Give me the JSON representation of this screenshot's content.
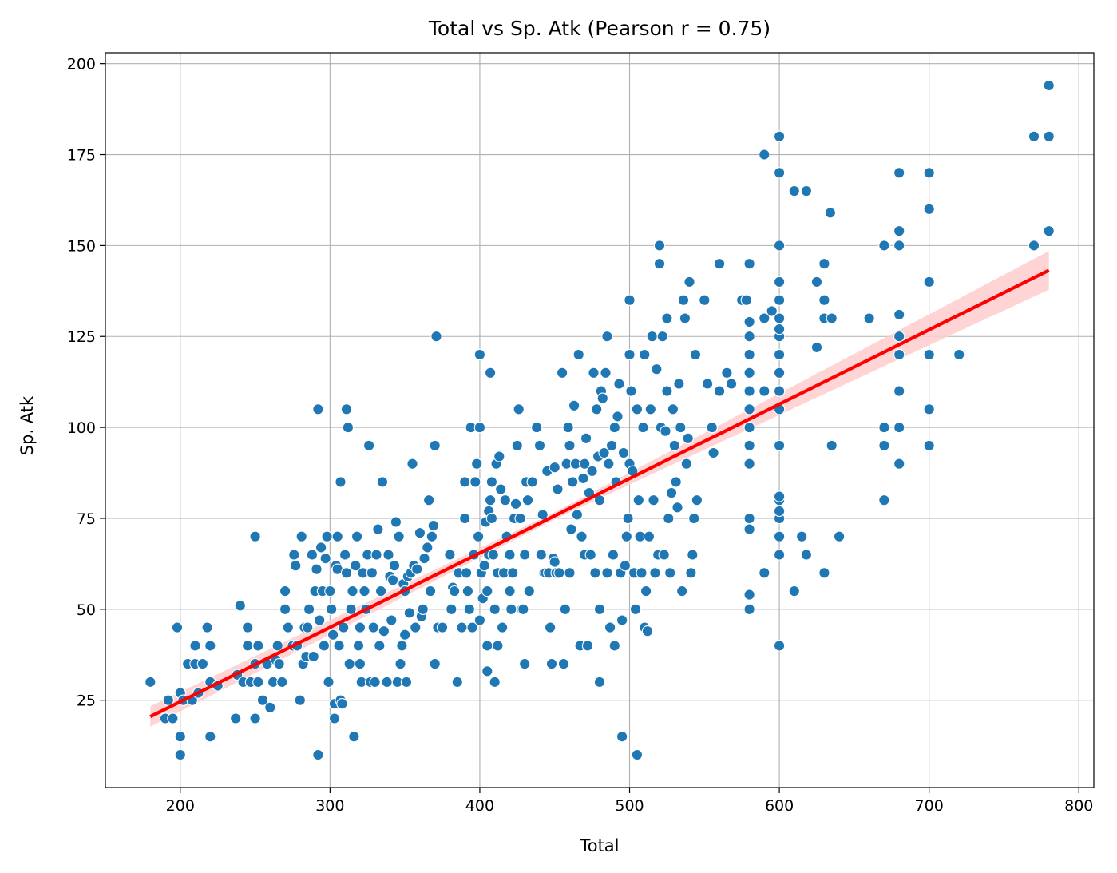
{
  "chart_data": {
    "type": "scatter",
    "title": "Total vs Sp. Atk (Pearson r = 0.75)",
    "xlabel": "Total",
    "ylabel": "Sp. Atk",
    "xlim": [
      150,
      810
    ],
    "ylim": [
      1,
      203
    ],
    "x_ticks": [
      200,
      300,
      400,
      500,
      600,
      700,
      800
    ],
    "y_ticks": [
      25,
      50,
      75,
      100,
      125,
      150,
      175,
      200
    ],
    "grid": true,
    "colors": {
      "points": "#1f77b4",
      "regression_line": "#ff0000",
      "confidence_band": "#ffcccc"
    },
    "regression": {
      "x_range": [
        180,
        780
      ],
      "y_start": 20.5,
      "y_end": 143.2,
      "band_halfwidth_start": 2.8,
      "band_halfwidth_mid": 1.0,
      "band_halfwidth_end": 5.3
    },
    "points": [
      [
        180,
        30
      ],
      [
        190,
        20
      ],
      [
        192,
        25
      ],
      [
        195,
        20
      ],
      [
        198,
        45
      ],
      [
        200,
        10
      ],
      [
        200,
        15
      ],
      [
        200,
        27
      ],
      [
        202,
        25
      ],
      [
        205,
        35
      ],
      [
        208,
        25
      ],
      [
        210,
        35
      ],
      [
        210,
        40
      ],
      [
        212,
        27
      ],
      [
        215,
        35
      ],
      [
        218,
        45
      ],
      [
        220,
        15
      ],
      [
        220,
        30
      ],
      [
        220,
        40
      ],
      [
        225,
        29
      ],
      [
        237,
        20
      ],
      [
        238,
        32
      ],
      [
        240,
        51
      ],
      [
        242,
        30
      ],
      [
        245,
        45
      ],
      [
        245,
        40
      ],
      [
        247,
        30
      ],
      [
        250,
        20
      ],
      [
        250,
        35
      ],
      [
        250,
        70
      ],
      [
        252,
        40
      ],
      [
        252,
        30
      ],
      [
        255,
        25
      ],
      [
        258,
        35
      ],
      [
        260,
        23
      ],
      [
        262,
        30
      ],
      [
        264,
        36
      ],
      [
        265,
        40
      ],
      [
        266,
        35
      ],
      [
        268,
        30
      ],
      [
        270,
        55
      ],
      [
        270,
        50
      ],
      [
        272,
        45
      ],
      [
        275,
        40
      ],
      [
        276,
        65
      ],
      [
        277,
        62
      ],
      [
        278,
        40
      ],
      [
        280,
        25
      ],
      [
        281,
        70
      ],
      [
        282,
        35
      ],
      [
        283,
        45
      ],
      [
        284,
        37
      ],
      [
        285,
        45
      ],
      [
        286,
        50
      ],
      [
        288,
        65
      ],
      [
        289,
        37
      ],
      [
        290,
        55
      ],
      [
        291,
        61
      ],
      [
        292,
        10
      ],
      [
        292,
        105
      ],
      [
        293,
        47
      ],
      [
        294,
        67
      ],
      [
        295,
        55
      ],
      [
        296,
        40
      ],
      [
        297,
        64
      ],
      [
        298,
        70
      ],
      [
        299,
        30
      ],
      [
        300,
        55
      ],
      [
        301,
        50
      ],
      [
        302,
        43
      ],
      [
        303,
        20
      ],
      [
        303,
        24
      ],
      [
        304,
        62
      ],
      [
        305,
        70
      ],
      [
        305,
        61
      ],
      [
        306,
        40
      ],
      [
        307,
        25
      ],
      [
        307,
        85
      ],
      [
        308,
        24
      ],
      [
        309,
        45
      ],
      [
        310,
        65
      ],
      [
        311,
        60
      ],
      [
        311,
        105
      ],
      [
        312,
        100
      ],
      [
        313,
        35
      ],
      [
        314,
        50
      ],
      [
        315,
        55
      ],
      [
        316,
        15
      ],
      [
        317,
        62
      ],
      [
        318,
        70
      ],
      [
        319,
        40
      ],
      [
        320,
        35
      ],
      [
        320,
        45
      ],
      [
        321,
        30
      ],
      [
        322,
        60
      ],
      [
        323,
        55
      ],
      [
        324,
        50
      ],
      [
        325,
        65
      ],
      [
        326,
        95
      ],
      [
        327,
        30
      ],
      [
        328,
        60
      ],
      [
        329,
        45
      ],
      [
        330,
        30
      ],
      [
        331,
        65
      ],
      [
        332,
        72
      ],
      [
        333,
        40
      ],
      [
        334,
        55
      ],
      [
        335,
        85
      ],
      [
        336,
        44
      ],
      [
        338,
        30
      ],
      [
        339,
        65
      ],
      [
        340,
        59
      ],
      [
        341,
        47
      ],
      [
        342,
        58
      ],
      [
        343,
        62
      ],
      [
        344,
        74
      ],
      [
        345,
        30
      ],
      [
        346,
        70
      ],
      [
        347,
        35
      ],
      [
        348,
        40
      ],
      [
        349,
        57
      ],
      [
        350,
        43
      ],
      [
        350,
        55
      ],
      [
        351,
        30
      ],
      [
        352,
        59
      ],
      [
        353,
        49
      ],
      [
        354,
        60
      ],
      [
        355,
        90
      ],
      [
        356,
        62
      ],
      [
        357,
        45
      ],
      [
        358,
        61
      ],
      [
        360,
        71
      ],
      [
        361,
        48
      ],
      [
        362,
        50
      ],
      [
        363,
        64
      ],
      [
        365,
        67
      ],
      [
        366,
        80
      ],
      [
        367,
        55
      ],
      [
        368,
        70
      ],
      [
        369,
        73
      ],
      [
        370,
        35
      ],
      [
        370,
        95
      ],
      [
        371,
        125
      ],
      [
        372,
        45
      ],
      [
        375,
        45
      ],
      [
        380,
        65
      ],
      [
        381,
        50
      ],
      [
        382,
        56
      ],
      [
        383,
        55
      ],
      [
        385,
        30
      ],
      [
        386,
        60
      ],
      [
        388,
        45
      ],
      [
        390,
        85
      ],
      [
        390,
        75
      ],
      [
        391,
        60
      ],
      [
        392,
        55
      ],
      [
        393,
        50
      ],
      [
        394,
        100
      ],
      [
        395,
        45
      ],
      [
        396,
        65
      ],
      [
        397,
        85
      ],
      [
        398,
        90
      ],
      [
        399,
        70
      ],
      [
        400,
        100
      ],
      [
        400,
        47
      ],
      [
        400,
        120
      ],
      [
        401,
        60
      ],
      [
        402,
        53
      ],
      [
        403,
        62
      ],
      [
        404,
        74
      ],
      [
        405,
        40
      ],
      [
        405,
        55
      ],
      [
        405,
        33
      ],
      [
        406,
        65
      ],
      [
        406,
        77
      ],
      [
        407,
        115
      ],
      [
        407,
        80
      ],
      [
        408,
        85
      ],
      [
        408,
        75
      ],
      [
        409,
        65
      ],
      [
        410,
        30
      ],
      [
        410,
        50
      ],
      [
        411,
        90
      ],
      [
        412,
        60
      ],
      [
        412,
        40
      ],
      [
        413,
        92
      ],
      [
        414,
        83
      ],
      [
        415,
        45
      ],
      [
        416,
        60
      ],
      [
        417,
        80
      ],
      [
        418,
        70
      ],
      [
        420,
        65
      ],
      [
        420,
        55
      ],
      [
        421,
        50
      ],
      [
        422,
        60
      ],
      [
        423,
        75
      ],
      [
        424,
        79
      ],
      [
        425,
        95
      ],
      [
        426,
        105
      ],
      [
        427,
        75
      ],
      [
        428,
        50
      ],
      [
        429,
        50
      ],
      [
        430,
        35
      ],
      [
        430,
        65
      ],
      [
        431,
        85
      ],
      [
        432,
        80
      ],
      [
        433,
        55
      ],
      [
        435,
        85
      ],
      [
        438,
        100
      ],
      [
        440,
        95
      ],
      [
        441,
        65
      ],
      [
        442,
        76
      ],
      [
        443,
        60
      ],
      [
        444,
        60
      ],
      [
        445,
        88
      ],
      [
        446,
        60
      ],
      [
        447,
        45
      ],
      [
        448,
        35
      ],
      [
        449,
        64
      ],
      [
        450,
        89
      ],
      [
        450,
        63
      ],
      [
        451,
        60
      ],
      [
        452,
        83
      ],
      [
        453,
        60
      ],
      [
        455,
        115
      ],
      [
        456,
        35
      ],
      [
        457,
        50
      ],
      [
        458,
        90
      ],
      [
        459,
        100
      ],
      [
        460,
        60
      ],
      [
        460,
        95
      ],
      [
        461,
        72
      ],
      [
        462,
        85
      ],
      [
        463,
        106
      ],
      [
        464,
        90
      ],
      [
        465,
        76
      ],
      [
        466,
        120
      ],
      [
        467,
        40
      ],
      [
        468,
        70
      ],
      [
        469,
        86
      ],
      [
        470,
        90
      ],
      [
        470,
        65
      ],
      [
        471,
        97
      ],
      [
        472,
        40
      ],
      [
        473,
        82
      ],
      [
        474,
        65
      ],
      [
        475,
        88
      ],
      [
        476,
        115
      ],
      [
        477,
        60
      ],
      [
        478,
        105
      ],
      [
        479,
        92
      ],
      [
        480,
        80
      ],
      [
        480,
        50
      ],
      [
        480,
        30
      ],
      [
        481,
        110
      ],
      [
        482,
        108
      ],
      [
        483,
        93
      ],
      [
        484,
        115
      ],
      [
        485,
        60
      ],
      [
        485,
        125
      ],
      [
        486,
        90
      ],
      [
        487,
        45
      ],
      [
        488,
        95
      ],
      [
        489,
        65
      ],
      [
        490,
        100
      ],
      [
        490,
        40
      ],
      [
        491,
        85
      ],
      [
        492,
        103
      ],
      [
        493,
        112
      ],
      [
        494,
        60
      ],
      [
        495,
        15
      ],
      [
        495,
        47
      ],
      [
        496,
        93
      ],
      [
        497,
        62
      ],
      [
        498,
        70
      ],
      [
        499,
        75
      ],
      [
        500,
        90
      ],
      [
        500,
        135
      ],
      [
        500,
        120
      ],
      [
        501,
        110
      ],
      [
        502,
        88
      ],
      [
        503,
        60
      ],
      [
        504,
        50
      ],
      [
        505,
        10
      ],
      [
        505,
        105
      ],
      [
        506,
        80
      ],
      [
        507,
        70
      ],
      [
        508,
        60
      ],
      [
        509,
        100
      ],
      [
        510,
        45
      ],
      [
        510,
        120
      ],
      [
        511,
        55
      ],
      [
        512,
        44
      ],
      [
        513,
        70
      ],
      [
        514,
        105
      ],
      [
        515,
        125
      ],
      [
        516,
        80
      ],
      [
        517,
        60
      ],
      [
        518,
        116
      ],
      [
        519,
        65
      ],
      [
        520,
        150
      ],
      [
        520,
        145
      ],
      [
        521,
        100
      ],
      [
        522,
        125
      ],
      [
        523,
        65
      ],
      [
        524,
        99
      ],
      [
        525,
        130
      ],
      [
        525,
        110
      ],
      [
        526,
        75
      ],
      [
        527,
        60
      ],
      [
        528,
        82
      ],
      [
        529,
        105
      ],
      [
        530,
        95
      ],
      [
        531,
        85
      ],
      [
        532,
        78
      ],
      [
        533,
        112
      ],
      [
        534,
        100
      ],
      [
        535,
        55
      ],
      [
        536,
        135
      ],
      [
        537,
        130
      ],
      [
        538,
        90
      ],
      [
        539,
        97
      ],
      [
        540,
        140
      ],
      [
        541,
        60
      ],
      [
        542,
        65
      ],
      [
        543,
        75
      ],
      [
        544,
        120
      ],
      [
        545,
        80
      ],
      [
        550,
        135
      ],
      [
        552,
        112
      ],
      [
        555,
        100
      ],
      [
        556,
        93
      ],
      [
        560,
        110
      ],
      [
        560,
        145
      ],
      [
        565,
        115
      ],
      [
        568,
        112
      ],
      [
        575,
        135
      ],
      [
        578,
        135
      ],
      [
        580,
        145
      ],
      [
        580,
        50
      ],
      [
        580,
        54
      ],
      [
        580,
        72
      ],
      [
        580,
        75
      ],
      [
        580,
        90
      ],
      [
        580,
        95
      ],
      [
        580,
        100
      ],
      [
        580,
        105
      ],
      [
        580,
        110
      ],
      [
        580,
        115
      ],
      [
        580,
        120
      ],
      [
        580,
        125
      ],
      [
        580,
        129
      ],
      [
        590,
        60
      ],
      [
        590,
        110
      ],
      [
        590,
        130
      ],
      [
        590,
        175
      ],
      [
        595,
        132
      ],
      [
        600,
        40
      ],
      [
        600,
        65
      ],
      [
        600,
        70
      ],
      [
        600,
        75
      ],
      [
        600,
        77
      ],
      [
        600,
        80
      ],
      [
        600,
        81
      ],
      [
        600,
        95
      ],
      [
        600,
        105
      ],
      [
        600,
        110
      ],
      [
        600,
        115
      ],
      [
        600,
        120
      ],
      [
        600,
        125
      ],
      [
        600,
        127
      ],
      [
        600,
        130
      ],
      [
        600,
        135
      ],
      [
        600,
        140
      ],
      [
        600,
        150
      ],
      [
        600,
        170
      ],
      [
        600,
        180
      ],
      [
        610,
        55
      ],
      [
        610,
        165
      ],
      [
        615,
        70
      ],
      [
        618,
        65
      ],
      [
        618,
        165
      ],
      [
        625,
        122
      ],
      [
        625,
        140
      ],
      [
        630,
        60
      ],
      [
        630,
        130
      ],
      [
        630,
        135
      ],
      [
        630,
        145
      ],
      [
        634,
        159
      ],
      [
        635,
        95
      ],
      [
        635,
        130
      ],
      [
        640,
        70
      ],
      [
        660,
        130
      ],
      [
        670,
        80
      ],
      [
        670,
        95
      ],
      [
        670,
        100
      ],
      [
        670,
        150
      ],
      [
        680,
        90
      ],
      [
        680,
        100
      ],
      [
        680,
        110
      ],
      [
        680,
        120
      ],
      [
        680,
        125
      ],
      [
        680,
        131
      ],
      [
        680,
        150
      ],
      [
        680,
        154
      ],
      [
        680,
        170
      ],
      [
        700,
        95
      ],
      [
        700,
        105
      ],
      [
        700,
        120
      ],
      [
        700,
        140
      ],
      [
        700,
        160
      ],
      [
        700,
        170
      ],
      [
        720,
        120
      ],
      [
        770,
        150
      ],
      [
        770,
        180
      ],
      [
        780,
        154
      ],
      [
        780,
        180
      ],
      [
        780,
        194
      ]
    ]
  }
}
